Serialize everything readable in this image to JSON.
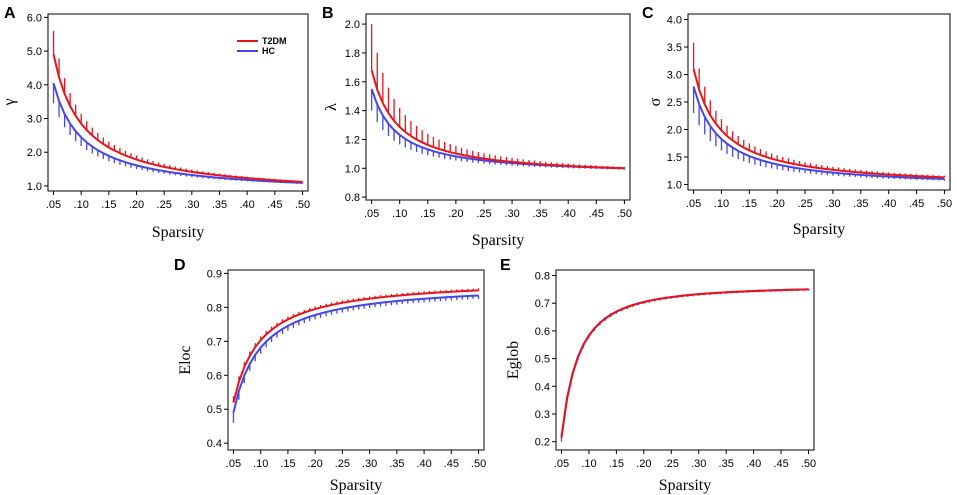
{
  "colors": {
    "t2dm": "#e8141c",
    "hc": "#4646e6",
    "axis": "#000000"
  },
  "chart_data": [
    {
      "id": "A",
      "panel_label": "A",
      "type": "line",
      "ylabel": "γ",
      "xlabel": "Sparsity",
      "xlim": [
        0.04,
        0.51
      ],
      "ylim": [
        0.85,
        6.1
      ],
      "xticks": [
        0.05,
        0.1,
        0.15,
        0.2,
        0.25,
        0.3,
        0.35,
        0.4,
        0.45,
        0.5
      ],
      "xtick_labels": [
        ".05",
        ".10",
        ".15",
        ".20",
        ".25",
        ".30",
        ".35",
        ".40",
        ".45",
        ".50"
      ],
      "yticks": [
        1.0,
        2.0,
        3.0,
        4.0,
        5.0,
        6.0
      ],
      "ytick_labels": [
        "1.0",
        "2.0",
        "3.0",
        "4.0",
        "5.0",
        "6.0"
      ],
      "legend": {
        "position": "top-right",
        "entries": [
          "T2DM",
          "HC"
        ]
      },
      "model": {
        "T2DM": {
          "start": 4.9,
          "end": 1.12,
          "k": 0.95,
          "err0": 0.7,
          "err1": 0.03
        },
        "HC": {
          "start": 4.05,
          "end": 1.09,
          "k": 0.95,
          "err0": 0.6,
          "err1": 0.03
        }
      }
    },
    {
      "id": "B",
      "panel_label": "B",
      "type": "line",
      "ylabel": "λ",
      "xlabel": "Sparsity",
      "xlim": [
        0.04,
        0.51
      ],
      "ylim": [
        0.78,
        2.07
      ],
      "xticks": [
        0.05,
        0.1,
        0.15,
        0.2,
        0.25,
        0.3,
        0.35,
        0.4,
        0.45,
        0.5
      ],
      "xtick_labels": [
        ".05",
        ".10",
        ".15",
        ".20",
        ".25",
        ".30",
        ".35",
        ".40",
        ".45",
        ".50"
      ],
      "yticks": [
        0.8,
        1.0,
        1.2,
        1.4,
        1.6,
        1.8,
        2.0
      ],
      "ytick_labels": [
        "0.8",
        "1.0",
        "1.2",
        "1.4",
        "1.6",
        "1.8",
        "2.0"
      ],
      "model": {
        "T2DM": {
          "start": 1.68,
          "end": 1.0,
          "k": 1.1,
          "err0": 0.32,
          "err1": 0.01
        },
        "HC": {
          "start": 1.55,
          "end": 1.0,
          "k": 1.1,
          "err0": 0.15,
          "err1": 0.01
        }
      }
    },
    {
      "id": "C",
      "panel_label": "C",
      "type": "line",
      "ylabel": "σ",
      "xlabel": "Sparsity",
      "xlim": [
        0.04,
        0.51
      ],
      "ylim": [
        0.9,
        4.1
      ],
      "xticks": [
        0.05,
        0.1,
        0.15,
        0.2,
        0.25,
        0.3,
        0.35,
        0.4,
        0.45,
        0.5
      ],
      "xtick_labels": [
        ".05",
        ".10",
        ".15",
        ".20",
        ".25",
        ".30",
        ".35",
        ".40",
        ".45",
        ".50"
      ],
      "yticks": [
        1.0,
        1.5,
        2.0,
        2.5,
        3.0,
        3.5,
        4.0
      ],
      "ytick_labels": [
        "1.0",
        "1.5",
        "2.0",
        "2.5",
        "3.0",
        "3.5",
        "4.0"
      ],
      "model": {
        "T2DM": {
          "start": 3.1,
          "end": 1.13,
          "k": 1.05,
          "err0": 0.48,
          "err1": 0.03
        },
        "HC": {
          "start": 2.78,
          "end": 1.1,
          "k": 1.05,
          "err0": 0.48,
          "err1": 0.03
        }
      }
    },
    {
      "id": "D",
      "panel_label": "D",
      "type": "line",
      "ylabel": "Eloc",
      "xlabel": "Sparsity",
      "xlim": [
        0.04,
        0.51
      ],
      "ylim": [
        0.38,
        0.91
      ],
      "xticks": [
        0.05,
        0.1,
        0.15,
        0.2,
        0.25,
        0.3,
        0.35,
        0.4,
        0.45,
        0.5
      ],
      "xtick_labels": [
        ".05",
        ".10",
        ".15",
        ".20",
        ".25",
        ".30",
        ".35",
        ".40",
        ".45",
        ".50"
      ],
      "yticks": [
        0.4,
        0.5,
        0.6,
        0.7,
        0.8,
        0.9
      ],
      "ytick_labels": [
        "0.4",
        "0.5",
        "0.6",
        "0.7",
        "0.8",
        "0.9"
      ],
      "model": {
        "T2DM": {
          "start": 0.52,
          "end": 0.85,
          "k": 1.0,
          "err0": 0.03,
          "err1": 0.01
        },
        "HC": {
          "start": 0.49,
          "end": 0.835,
          "k": 1.0,
          "err0": 0.03,
          "err1": 0.01
        }
      }
    },
    {
      "id": "E",
      "panel_label": "E",
      "type": "line",
      "ylabel": "Eglob",
      "xlabel": "Sparsity",
      "xlim": [
        0.04,
        0.51
      ],
      "ylim": [
        0.17,
        0.82
      ],
      "xticks": [
        0.05,
        0.1,
        0.15,
        0.2,
        0.25,
        0.3,
        0.35,
        0.4,
        0.45,
        0.5
      ],
      "xtick_labels": [
        ".05",
        ".10",
        ".15",
        ".20",
        ".25",
        ".30",
        ".35",
        ".40",
        ".45",
        ".50"
      ],
      "yticks": [
        0.2,
        0.3,
        0.4,
        0.5,
        0.6,
        0.7,
        0.8
      ],
      "ytick_labels": [
        "0.2",
        "0.3",
        "0.4",
        "0.5",
        "0.6",
        "0.7",
        "0.8"
      ],
      "model": {
        "T2DM": {
          "start": 0.215,
          "end": 0.75,
          "k": 1.6,
          "err0": 0.02,
          "err1": 0.005
        },
        "HC": {
          "start": 0.22,
          "end": 0.75,
          "k": 1.6,
          "err0": 0.02,
          "err1": 0.005
        }
      }
    }
  ]
}
